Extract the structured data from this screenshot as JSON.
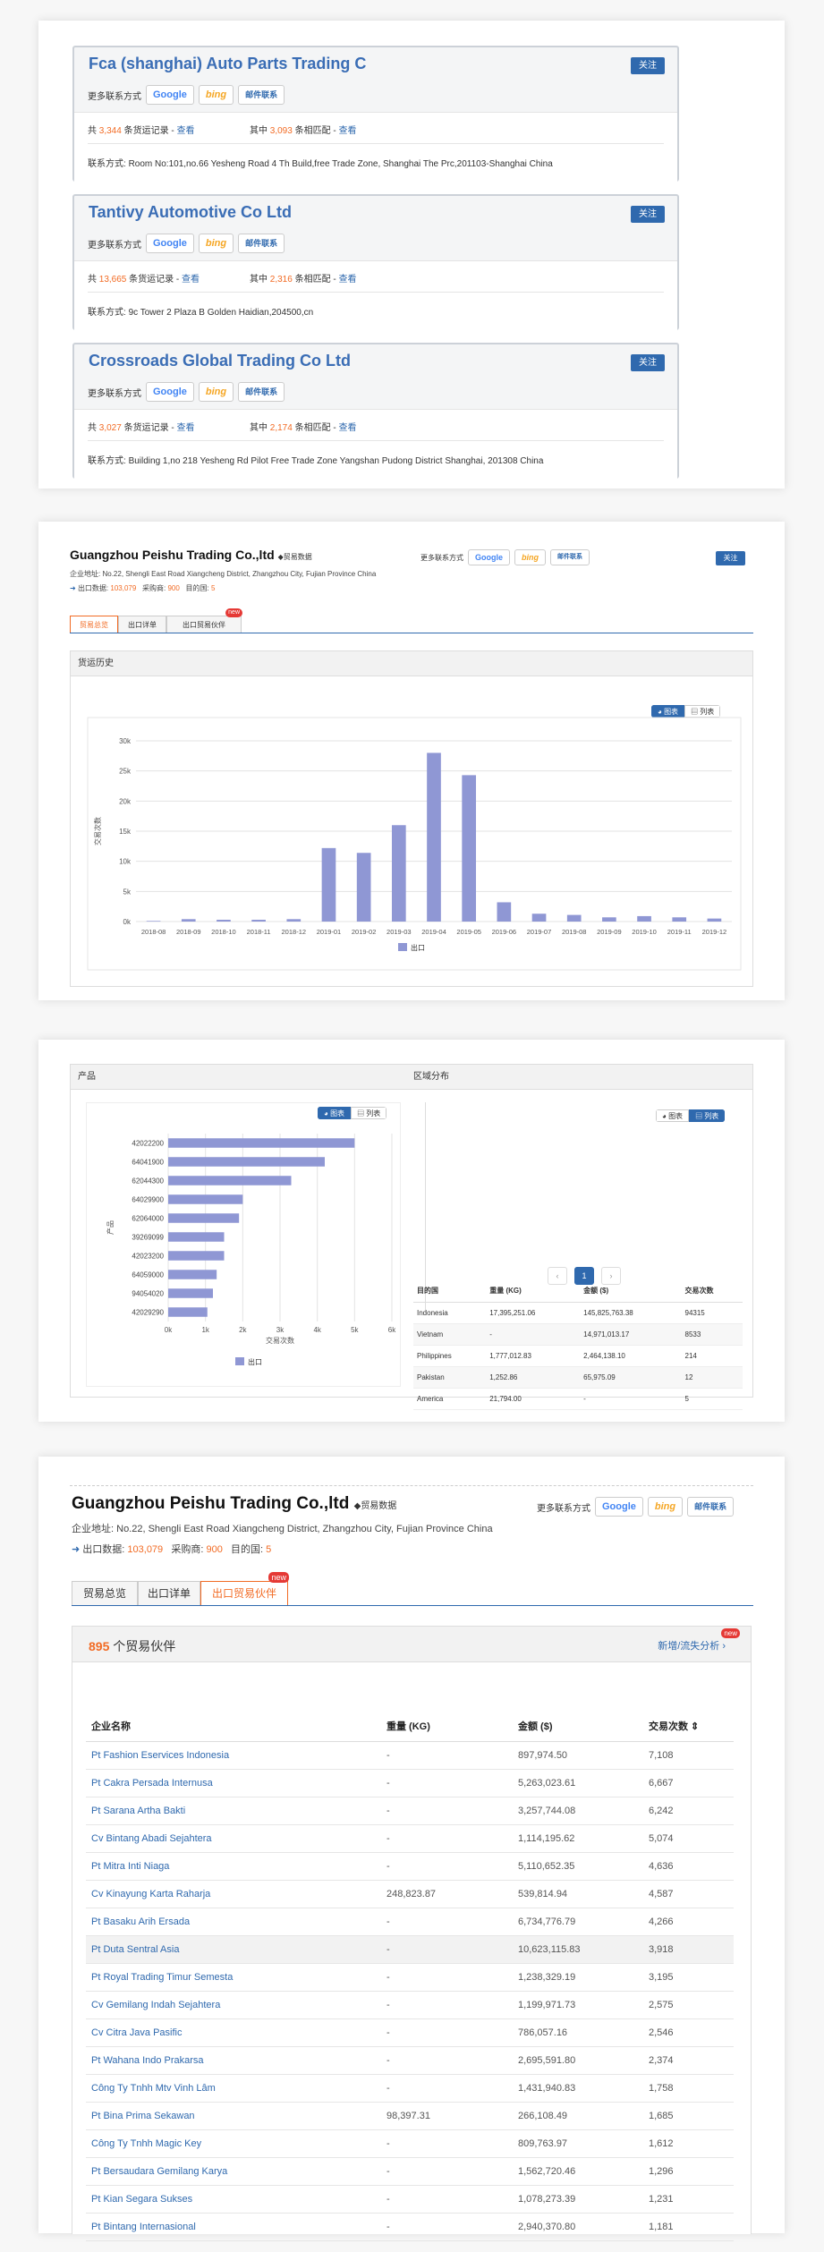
{
  "companies": [
    {
      "name": "Fca (shanghai) Auto Parts Trading C",
      "follow": "关注",
      "more": "更多联系方式",
      "google": "Google",
      "bing": "bing",
      "mail": "邮件联系",
      "records_prefix": "共",
      "records": "3,344",
      "records_suffix": "条货运记录 -",
      "view": "查看",
      "match_prefix": "其中",
      "match": "3,093",
      "match_suffix": "条相匹配 -",
      "addr_label": "联系方式:",
      "addr": "Room No:101,no.66 Yesheng Road 4 Th Build,free Trade Zone, Shanghai The Prc,201103-Shanghai China"
    },
    {
      "name": "Tantivy Automotive Co Ltd",
      "follow": "关注",
      "more": "更多联系方式",
      "google": "Google",
      "bing": "bing",
      "mail": "邮件联系",
      "records_prefix": "共",
      "records": "13,665",
      "records_suffix": "条货运记录 -",
      "view": "查看",
      "match_prefix": "其中",
      "match": "2,316",
      "match_suffix": "条相匹配 -",
      "addr_label": "联系方式:",
      "addr": "9c Tower 2 Plaza B Golden Haidian,204500,cn"
    },
    {
      "name": "Crossroads Global Trading Co Ltd",
      "follow": "关注",
      "more": "更多联系方式",
      "google": "Google",
      "bing": "bing",
      "mail": "邮件联系",
      "records_prefix": "共",
      "records": "3,027",
      "records_suffix": "条货运记录 -",
      "view": "查看",
      "match_prefix": "其中",
      "match": "2,174",
      "match_suffix": "条相匹配 -",
      "addr_label": "联系方式:",
      "addr": "Building 1,no 218 Yesheng Rd Pilot Free Trade Zone Yangshan Pudong District Shanghai, 201308 China"
    }
  ],
  "profile": {
    "name": "Guangzhou Peishu Trading Co.,ltd",
    "badge": "贸易数据",
    "more": "更多联系方式",
    "google": "Google",
    "bing": "bing",
    "mail": "邮件联系",
    "follow": "关注",
    "addr_label": "企业地址:",
    "addr": "No.22, Shengli East Road Xiangcheng District, Zhangzhou City, Fujian Province China",
    "export_label": "出口数据:",
    "export_val": "103,079",
    "buyers_label": "采购商:",
    "buyers_val": "900",
    "dest_label": "目的国:",
    "dest_val": "5",
    "tabs": [
      "贸易总览",
      "出口详单",
      "出口贸易伙伴"
    ],
    "new_badge": "new"
  },
  "profile2": {
    "name": "Guangzhou Peishu Trading Co.,ltd"
  },
  "history": {
    "header": "货运历史",
    "seg_chart": "图表",
    "seg_list": "列表"
  },
  "chart_data": [
    {
      "type": "bar",
      "categories": [
        "2018-08",
        "2018-09",
        "2018-10",
        "2018-11",
        "2018-12",
        "2019-01",
        "2019-02",
        "2019-03",
        "2019-04",
        "2019-05",
        "2019-06",
        "2019-07",
        "2019-08",
        "2019-09",
        "2019-10",
        "2019-11",
        "2019-12"
      ],
      "series": [
        {
          "name": "出口",
          "values": [
            100,
            400,
            300,
            300,
            400,
            12200,
            11400,
            16000,
            28000,
            24300,
            3200,
            1300,
            1100,
            700,
            900,
            700,
            500
          ]
        }
      ],
      "ylabel": "交易次数",
      "ylim": [
        0,
        30000
      ],
      "yticks": [
        "0k",
        "5k",
        "10k",
        "15k",
        "20k",
        "25k",
        "30k"
      ],
      "legend": "bottom",
      "color": "#8f97d4"
    },
    {
      "type": "bar",
      "orientation": "horizontal",
      "categories": [
        "42022200",
        "64041900",
        "62044300",
        "64029900",
        "62064000",
        "39269099",
        "42023200",
        "64059000",
        "94054020",
        "42029290"
      ],
      "series": [
        {
          "name": "出口",
          "values": [
            5000,
            4200,
            3300,
            2000,
            1900,
            1500,
            1500,
            1300,
            1200,
            1050
          ]
        }
      ],
      "xlabel": "交易次数",
      "ylabel": "产品",
      "xlim": [
        0,
        6000
      ],
      "xticks": [
        "0k",
        "1k",
        "2k",
        "3k",
        "4k",
        "5k",
        "6k"
      ],
      "legend": "bottom",
      "color": "#8f97d4"
    }
  ],
  "products": {
    "header": "产品",
    "region_header": "区域分布",
    "seg_chart": "图表",
    "seg_list": "列表",
    "region": {
      "headers": [
        "目的国",
        "重量 (KG)",
        "金额 ($)",
        "交易次数"
      ],
      "rows": [
        [
          "Indonesia",
          "17,395,251.06",
          "145,825,763.38",
          "94315"
        ],
        [
          "Vietnam",
          "-",
          "14,971,013.17",
          "8533"
        ],
        [
          "Philippines",
          "1,777,012.83",
          "2,464,138.10",
          "214"
        ],
        [
          "Pakistan",
          "1,252.86",
          "65,975.09",
          "12"
        ],
        [
          "America",
          "21,794.00",
          "-",
          "5"
        ]
      ]
    },
    "pager": [
      "‹",
      "1",
      "›"
    ]
  },
  "partners": {
    "count": "895",
    "count_label": "个贸易伙伴",
    "analysis": "新增/流失分析 ›",
    "new_badge": "new",
    "headers": [
      "企业名称",
      "重量 (KG)",
      "金额 ($)",
      "交易次数 ⇕"
    ],
    "rows": [
      [
        "Pt Fashion Eservices Indonesia",
        "-",
        "897,974.50",
        "7,108"
      ],
      [
        "Pt Cakra Persada Internusa",
        "-",
        "5,263,023.61",
        "6,667"
      ],
      [
        "Pt Sarana Artha Bakti",
        "-",
        "3,257,744.08",
        "6,242"
      ],
      [
        "Cv Bintang Abadi Sejahtera",
        "-",
        "1,114,195.62",
        "5,074"
      ],
      [
        "Pt Mitra Inti Niaga",
        "-",
        "5,110,652.35",
        "4,636"
      ],
      [
        "Cv Kinayung Karta Raharja",
        "248,823.87",
        "539,814.94",
        "4,587"
      ],
      [
        "Pt Basaku Arih Ersada",
        "-",
        "6,734,776.79",
        "4,266"
      ],
      [
        "Pt Duta Sentral Asia",
        "-",
        "10,623,115.83",
        "3,918"
      ],
      [
        "Pt Royal Trading Timur Semesta",
        "-",
        "1,238,329.19",
        "3,195"
      ],
      [
        "Cv Gemilang Indah Sejahtera",
        "-",
        "1,199,971.73",
        "2,575"
      ],
      [
        "Cv Citra Java Pasific",
        "-",
        "786,057.16",
        "2,546"
      ],
      [
        "Pt Wahana Indo Prakarsa",
        "-",
        "2,695,591.80",
        "2,374"
      ],
      [
        "Công Ty Tnhh Mtv Vinh Lâm",
        "-",
        "1,431,940.83",
        "1,758"
      ],
      [
        "Pt Bina Prima Sekawan",
        "98,397.31",
        "266,108.49",
        "1,685"
      ],
      [
        "Công Ty Tnhh Magic Key",
        "-",
        "809,763.97",
        "1,612"
      ],
      [
        "Pt Bersaudara Gemilang Karya",
        "-",
        "1,562,720.46",
        "1,296"
      ],
      [
        "Pt Kian Segara Sukses",
        "-",
        "1,078,273.39",
        "1,231"
      ],
      [
        "Pt Bintang Internasional",
        "-",
        "2,940,370.80",
        "1,181"
      ]
    ]
  }
}
